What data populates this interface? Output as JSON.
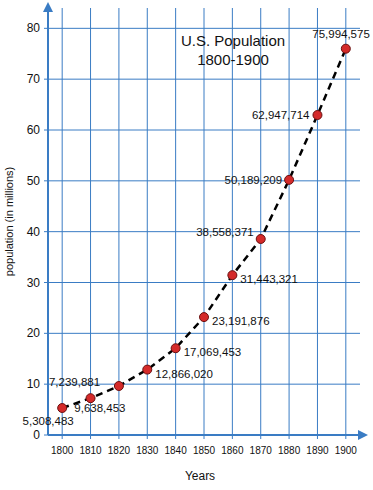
{
  "chart_data": {
    "type": "line",
    "title": "U.S. Population",
    "subtitle": "1800-1900",
    "x_label": "Years",
    "y_label": "population (in millions)",
    "x": [
      1800,
      1810,
      1820,
      1830,
      1840,
      1850,
      1860,
      1870,
      1880,
      1890,
      1900
    ],
    "values": [
      5.308483,
      7.239881,
      9.638453,
      12.86602,
      17.069453,
      23.191876,
      31.443321,
      38.558371,
      50.189209,
      62.947714,
      75.994575
    ],
    "value_labels": [
      "5,308,483",
      "7,239,881",
      "9,638,453",
      "12,866,020",
      "17,069,453",
      "23,191,876",
      "31,443,321",
      "38,558,371",
      "50,189,209",
      "62,947,714",
      "75,994,575"
    ],
    "xlim": [
      1795,
      1905
    ],
    "ylim": [
      0,
      84
    ],
    "xticks": [
      1800,
      1810,
      1820,
      1830,
      1840,
      1850,
      1860,
      1870,
      1880,
      1890,
      1900
    ],
    "yticks": [
      0,
      10,
      20,
      30,
      40,
      50,
      60,
      70,
      80
    ],
    "grid": true,
    "data_labels": true,
    "color": "#000000",
    "marker": "circle",
    "line_style": "dashed"
  }
}
